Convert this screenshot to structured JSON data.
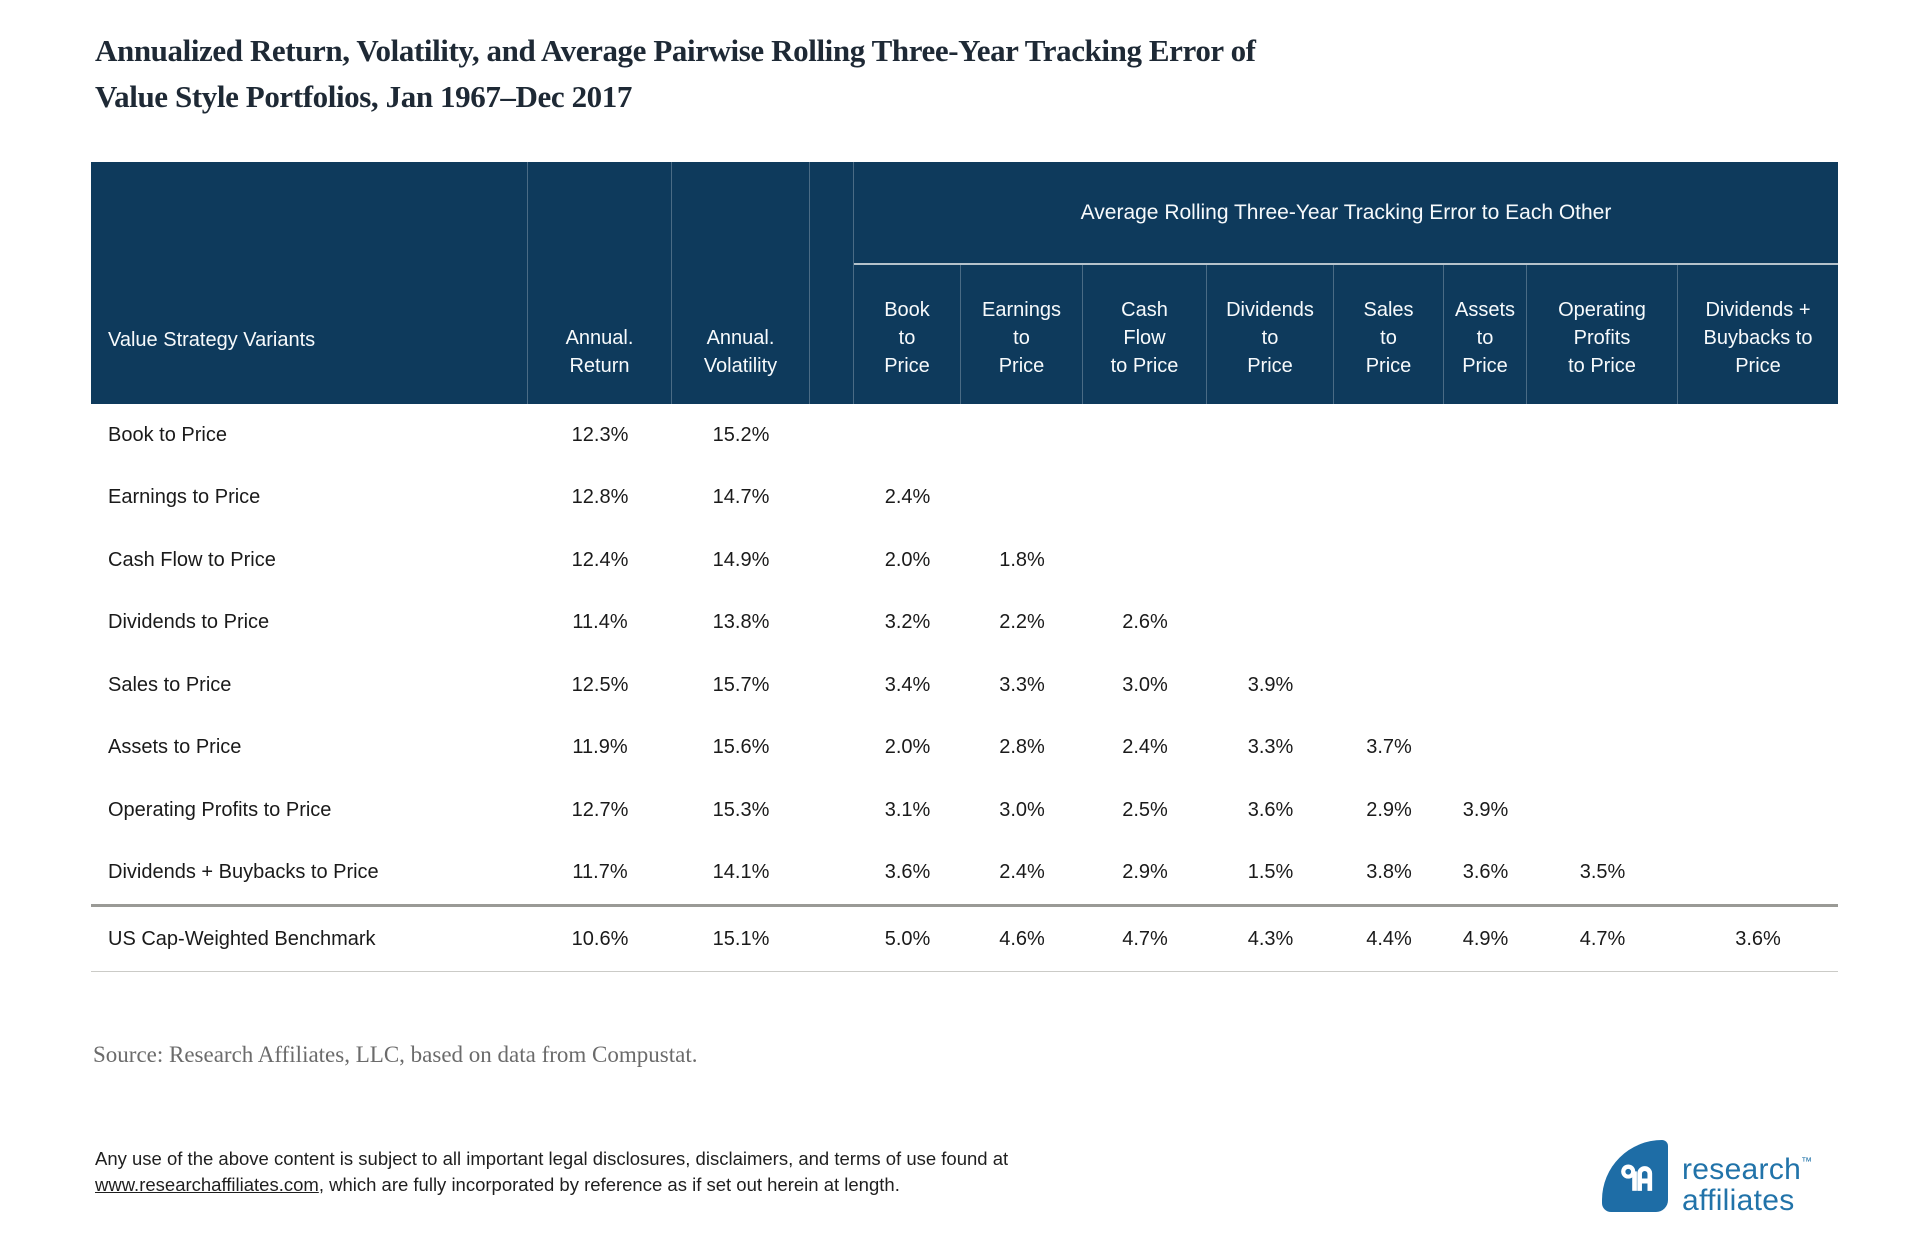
{
  "page": {
    "title_line1": "Annualized Return, Volatility, and Average Pairwise Rolling Three-Year Tracking Error of",
    "title_line2": "Value Style Portfolios, Jan 1967–Dec 2017"
  },
  "chart_data": {
    "type": "table",
    "title": "Annualized Return, Volatility, and Average Pairwise Rolling Three-Year Tracking Error of Value Style Portfolios, Jan 1967–Dec 2017",
    "group_header": "Average Rolling Three-Year Tracking Error to Each Other",
    "columns": [
      "Value Strategy Variants",
      "Annual. Return",
      "Annual. Volatility",
      "Book to Price",
      "Earnings to Price",
      "Cash Flow to Price",
      "Dividends to Price",
      "Sales to Price",
      "Assets to Price",
      "Operating Profits to Price",
      "Dividends + Buybacks to Price"
    ],
    "rows": [
      [
        "Book to Price",
        "12.3%",
        "15.2%",
        "",
        "",
        "",
        "",
        "",
        "",
        "",
        ""
      ],
      [
        "Earnings to Price",
        "12.8%",
        "14.7%",
        "2.4%",
        "",
        "",
        "",
        "",
        "",
        "",
        ""
      ],
      [
        "Cash Flow to Price",
        "12.4%",
        "14.9%",
        "2.0%",
        "1.8%",
        "",
        "",
        "",
        "",
        "",
        ""
      ],
      [
        "Dividends to Price",
        "11.4%",
        "13.8%",
        "3.2%",
        "2.2%",
        "2.6%",
        "",
        "",
        "",
        "",
        ""
      ],
      [
        "Sales to Price",
        "12.5%",
        "15.7%",
        "3.4%",
        "3.3%",
        "3.0%",
        "3.9%",
        "",
        "",
        "",
        ""
      ],
      [
        "Assets to Price",
        "11.9%",
        "15.6%",
        "2.0%",
        "2.8%",
        "2.4%",
        "3.3%",
        "3.7%",
        "",
        "",
        ""
      ],
      [
        "Operating Profits to Price",
        "12.7%",
        "15.3%",
        "3.1%",
        "3.0%",
        "2.5%",
        "3.6%",
        "2.9%",
        "3.9%",
        "",
        ""
      ],
      [
        "Dividends + Buybacks to Price",
        "11.7%",
        "14.1%",
        "3.6%",
        "2.4%",
        "2.9%",
        "1.5%",
        "3.8%",
        "3.6%",
        "3.5%",
        ""
      ]
    ],
    "benchmark_row": [
      "US Cap-Weighted Benchmark",
      "10.6%",
      "15.1%",
      "5.0%",
      "4.6%",
      "4.7%",
      "4.3%",
      "4.4%",
      "4.9%",
      "4.7%",
      "3.6%"
    ]
  },
  "table_display": {
    "header": {
      "label": "Value Strategy Variants",
      "annual_return": "Annual.\nReturn",
      "annual_volatility": "Annual.\nVolatility",
      "group": "Average Rolling Three-Year Tracking Error to Each Other",
      "tracking": [
        "Book\nto\nPrice",
        "Earnings\nto\nPrice",
        "Cash\nFlow\nto Price",
        "Dividends\nto\nPrice",
        "Sales\nto\nPrice",
        "Assets\nto\nPrice",
        "Operating\nProfits\nto Price",
        "Dividends +\nBuybacks to\nPrice"
      ]
    }
  },
  "source_note": "Source: Research Affiliates, LLC, based on data from Compustat.",
  "legal": {
    "line1": "Any use of the above content is subject to all important legal disclosures, disclaimers, and terms of use found at",
    "link": "www.researchaffiliates.com",
    "line2_rest": ", which are fully incorporated by reference as if set out herein at length."
  },
  "logo": {
    "name_line1": "research",
    "name_line2": "affiliates",
    "trademark": "™"
  },
  "colors": {
    "header_bg": "#0e3a5c",
    "group_underline": "#b5c2cb",
    "title_color": "#1e2935",
    "text_color": "#1a1a1a",
    "source_color": "#6b6b6b",
    "divider_thick": "#9a9a96",
    "divider_thin": "#cbcbc7",
    "logo_blue": "#2173a9",
    "logo_mark": "#1e6da6"
  }
}
